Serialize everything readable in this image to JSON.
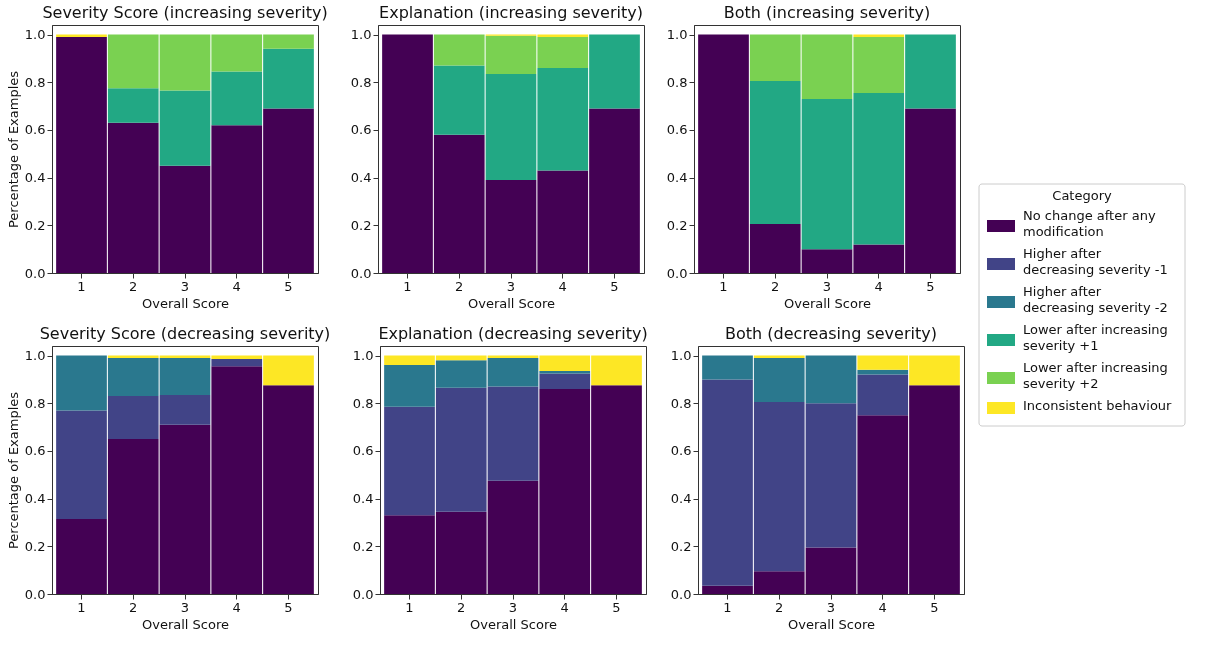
{
  "chart_data": [
    {
      "type": "bar",
      "stacked": true,
      "title": "Severity Score (increasing severity)",
      "xlabel": "Overall Score",
      "ylabel": "Percentage of Examples",
      "categories": [
        "1",
        "2",
        "3",
        "4",
        "5"
      ],
      "ylim": [
        0,
        1.04
      ],
      "yticks": [
        {
          "value": 0,
          "label": "0.0"
        },
        {
          "value": 0.2,
          "label": "0.2"
        },
        {
          "value": 0.4,
          "label": "0.4"
        },
        {
          "value": 0.6,
          "label": "0.6"
        },
        {
          "value": 0.8,
          "label": "0.8"
        },
        {
          "value": 1,
          "label": "1.0"
        }
      ],
      "grid": false,
      "legend": "right",
      "legend_title": "Category",
      "series": [
        {
          "name": "No change after any modification",
          "color": "#440154",
          "values": [
            0.99,
            0.63,
            0.45,
            0.62,
            0.69
          ]
        },
        {
          "name": "Lower after increasing severity +1",
          "color": "#22a884",
          "values": [
            null,
            0.145,
            0.315,
            0.225,
            0.25
          ]
        },
        {
          "name": "Lower after increasing severity +2",
          "color": "#7ad151",
          "values": [
            null,
            0.225,
            0.235,
            0.155,
            0.06
          ]
        },
        {
          "name": "Inconsistent behaviour",
          "color": "#fde725",
          "values": [
            0.01,
            null,
            null,
            null,
            null
          ]
        }
      ]
    },
    {
      "type": "bar",
      "stacked": true,
      "title": "Explanation (increasing severity)",
      "xlabel": "Overall Score",
      "categories": [
        "1",
        "2",
        "3",
        "4",
        "5"
      ],
      "ylim": [
        0,
        1.04
      ],
      "yticks": [
        {
          "value": 0,
          "label": "0.0"
        },
        {
          "value": 0.2,
          "label": "0.2"
        },
        {
          "value": 0.4,
          "label": "0.4"
        },
        {
          "value": 0.6,
          "label": "0.6"
        },
        {
          "value": 0.8,
          "label": "0.8"
        },
        {
          "value": 1,
          "label": "1.0"
        }
      ],
      "grid": false,
      "legend": "right",
      "series": [
        {
          "name": "No change after any modification",
          "color": "#440154",
          "values": [
            1.0,
            0.58,
            0.39,
            0.43,
            0.69
          ]
        },
        {
          "name": "Lower after increasing severity +1",
          "color": "#22a884",
          "values": [
            null,
            0.29,
            0.445,
            0.43,
            0.31
          ]
        },
        {
          "name": "Lower after increasing severity +2",
          "color": "#7ad151",
          "values": [
            null,
            0.13,
            0.16,
            0.13,
            null
          ]
        },
        {
          "name": "Inconsistent behaviour",
          "color": "#fde725",
          "values": [
            null,
            null,
            0.005,
            0.01,
            null
          ]
        }
      ]
    },
    {
      "type": "bar",
      "stacked": true,
      "title": "Both (increasing severity)",
      "xlabel": "Overall Score",
      "categories": [
        "1",
        "2",
        "3",
        "4",
        "5"
      ],
      "ylim": [
        0,
        1.04
      ],
      "yticks": [
        {
          "value": 0,
          "label": "0.0"
        },
        {
          "value": 0.2,
          "label": "0.2"
        },
        {
          "value": 0.4,
          "label": "0.4"
        },
        {
          "value": 0.6,
          "label": "0.6"
        },
        {
          "value": 0.8,
          "label": "0.8"
        },
        {
          "value": 1,
          "label": "1.0"
        }
      ],
      "grid": false,
      "legend": "right",
      "series": [
        {
          "name": "No change after any modification",
          "color": "#440154",
          "values": [
            1.0,
            0.205,
            0.1,
            0.12,
            0.69
          ]
        },
        {
          "name": "Lower after increasing severity +1",
          "color": "#22a884",
          "values": [
            null,
            0.6,
            0.63,
            0.635,
            0.31
          ]
        },
        {
          "name": "Lower after increasing severity +2",
          "color": "#7ad151",
          "values": [
            null,
            0.195,
            0.27,
            0.235,
            null
          ]
        },
        {
          "name": "Inconsistent behaviour",
          "color": "#fde725",
          "values": [
            null,
            null,
            null,
            0.01,
            null
          ]
        }
      ]
    },
    {
      "type": "bar",
      "stacked": true,
      "title": "Severity Score (decreasing severity)",
      "xlabel": "Overall Score",
      "ylabel": "Percentage of Examples",
      "categories": [
        "1",
        "2",
        "3",
        "4",
        "5"
      ],
      "ylim": [
        0,
        1.04
      ],
      "yticks": [
        {
          "value": 0,
          "label": "0.0"
        },
        {
          "value": 0.2,
          "label": "0.2"
        },
        {
          "value": 0.4,
          "label": "0.4"
        },
        {
          "value": 0.6,
          "label": "0.6"
        },
        {
          "value": 0.8,
          "label": "0.8"
        },
        {
          "value": 1,
          "label": "1.0"
        }
      ],
      "grid": false,
      "legend": "right",
      "series": [
        {
          "name": "No change after any modification",
          "color": "#440154",
          "values": [
            0.315,
            0.65,
            0.71,
            0.955,
            0.875
          ]
        },
        {
          "name": "Higher after decreasing severity -1",
          "color": "#414487",
          "values": [
            0.455,
            0.18,
            0.125,
            0.03,
            null
          ]
        },
        {
          "name": "Higher after decreasing severity -2",
          "color": "#2a788e",
          "values": [
            0.23,
            0.16,
            0.155,
            null,
            null
          ]
        },
        {
          "name": "Inconsistent behaviour",
          "color": "#fde725",
          "values": [
            null,
            0.01,
            0.01,
            0.015,
            0.125
          ]
        }
      ]
    },
    {
      "type": "bar",
      "stacked": true,
      "title": "Explanation (decreasing severity)",
      "xlabel": "Overall Score",
      "categories": [
        "1",
        "2",
        "3",
        "4",
        "5"
      ],
      "ylim": [
        0,
        1.04
      ],
      "yticks": [
        {
          "value": 0,
          "label": "0.0"
        },
        {
          "value": 0.2,
          "label": "0.2"
        },
        {
          "value": 0.4,
          "label": "0.4"
        },
        {
          "value": 0.6,
          "label": "0.6"
        },
        {
          "value": 0.8,
          "label": "0.8"
        },
        {
          "value": 1,
          "label": "1.0"
        }
      ],
      "grid": false,
      "legend": "right",
      "series": [
        {
          "name": "No change after any modification",
          "color": "#440154",
          "values": [
            0.33,
            0.345,
            0.475,
            0.86,
            0.875
          ]
        },
        {
          "name": "Higher after decreasing severity -1",
          "color": "#414487",
          "values": [
            0.455,
            0.52,
            0.395,
            0.065,
            null
          ]
        },
        {
          "name": "Higher after decreasing severity -2",
          "color": "#2a788e",
          "values": [
            0.175,
            0.115,
            0.12,
            0.01,
            null
          ]
        },
        {
          "name": "Inconsistent behaviour",
          "color": "#fde725",
          "values": [
            0.04,
            0.02,
            0.01,
            0.065,
            0.125
          ]
        }
      ]
    },
    {
      "type": "bar",
      "stacked": true,
      "title": "Both (decreasing severity)",
      "xlabel": "Overall Score",
      "categories": [
        "1",
        "2",
        "3",
        "4",
        "5"
      ],
      "ylim": [
        0,
        1.04
      ],
      "yticks": [
        {
          "value": 0,
          "label": "0.0"
        },
        {
          "value": 0.2,
          "label": "0.2"
        },
        {
          "value": 0.4,
          "label": "0.4"
        },
        {
          "value": 0.6,
          "label": "0.6"
        },
        {
          "value": 0.8,
          "label": "0.8"
        },
        {
          "value": 1,
          "label": "1.0"
        }
      ],
      "grid": false,
      "legend": "right",
      "series": [
        {
          "name": "No change after any modification",
          "color": "#440154",
          "values": [
            0.035,
            0.095,
            0.195,
            0.75,
            0.875
          ]
        },
        {
          "name": "Higher after decreasing severity -1",
          "color": "#414487",
          "values": [
            0.865,
            0.71,
            0.605,
            0.17,
            null
          ]
        },
        {
          "name": "Higher after decreasing severity -2",
          "color": "#2a788e",
          "values": [
            0.1,
            0.185,
            0.2,
            0.02,
            null
          ]
        },
        {
          "name": "Inconsistent behaviour",
          "color": "#fde725",
          "values": [
            null,
            0.01,
            null,
            0.06,
            0.125
          ]
        }
      ]
    }
  ]
}
